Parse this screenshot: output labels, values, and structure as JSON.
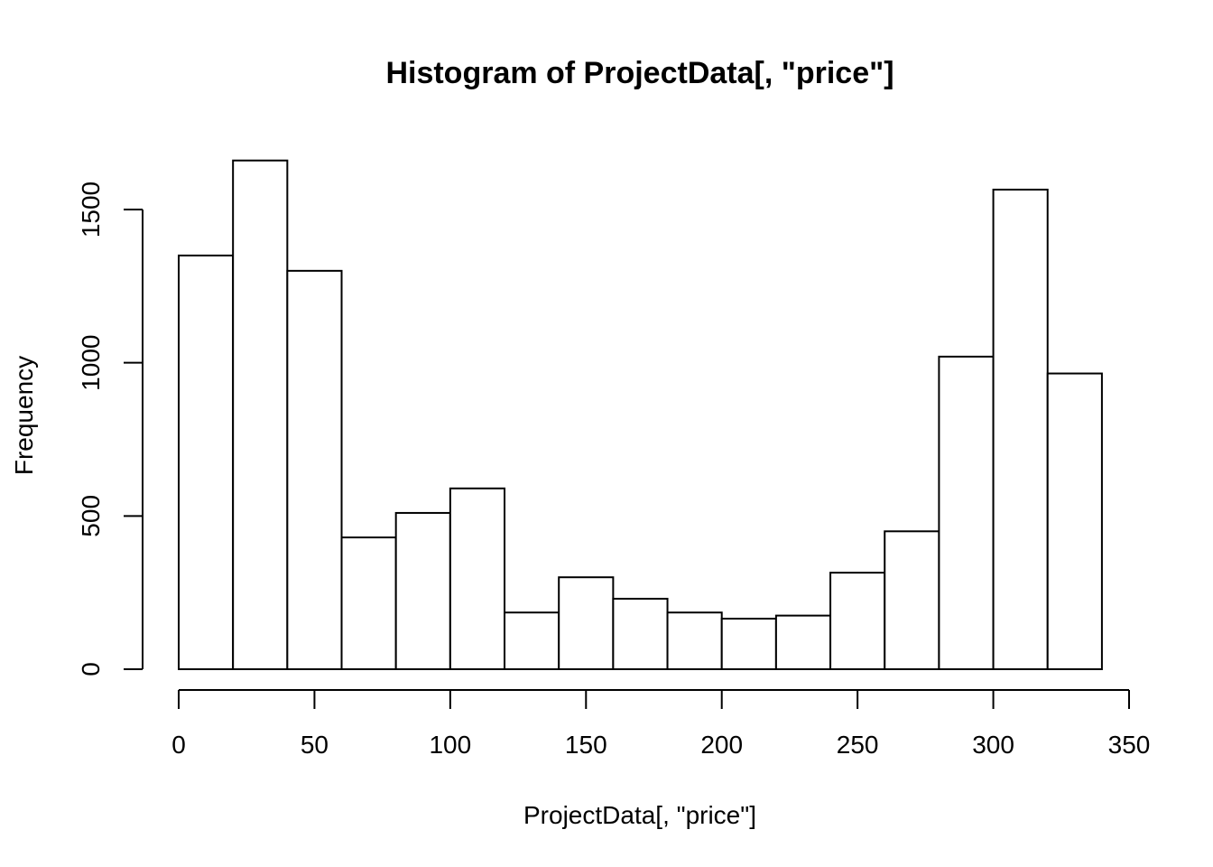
{
  "chart_data": {
    "type": "bar",
    "title": "Histogram of ProjectData[, \"price\"]",
    "xlabel": "ProjectData[, \"price\"]",
    "ylabel": "Frequency",
    "bin_edges": [
      0,
      20,
      40,
      60,
      80,
      100,
      120,
      140,
      160,
      180,
      200,
      220,
      240,
      260,
      280,
      300,
      320,
      340
    ],
    "values": [
      1350,
      1660,
      1300,
      430,
      510,
      590,
      185,
      300,
      230,
      185,
      165,
      175,
      315,
      450,
      1020,
      1565,
      965
    ],
    "xlim": [
      0,
      350
    ],
    "ylim": [
      0,
      1660
    ],
    "x_ticks": [
      0,
      50,
      100,
      150,
      200,
      250,
      300,
      350
    ],
    "x_tick_labels": [
      "0",
      "50",
      "100",
      "150",
      "200",
      "250",
      "300",
      "350"
    ],
    "y_ticks": [
      0,
      500,
      1000,
      1500
    ],
    "y_tick_labels": [
      "0",
      "500",
      "1000",
      "1500"
    ],
    "grid": false,
    "legend": "none",
    "bar_fill": "#ffffff",
    "bar_stroke": "#000000"
  }
}
